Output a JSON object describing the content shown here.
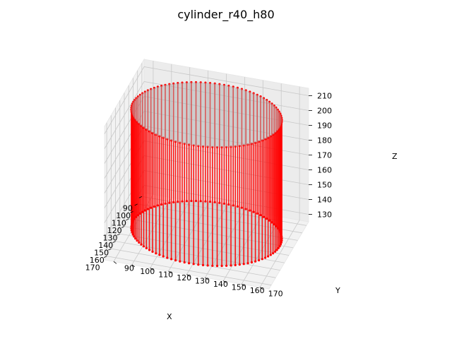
{
  "chart_data": {
    "type": "scatter",
    "projection": "3d",
    "title": "cylinder_r40_h80",
    "xlabel": "X",
    "ylabel": "Y",
    "zlabel": "Z",
    "x_ticks": [
      "90",
      "100",
      "110",
      "120",
      "130",
      "140",
      "150",
      "160",
      "170"
    ],
    "y_ticks": [
      "90",
      "100",
      "110",
      "120",
      "130",
      "140",
      "150",
      "160",
      "170"
    ],
    "z_ticks": [
      "130",
      "140",
      "150",
      "160",
      "170",
      "180",
      "190",
      "200",
      "210"
    ],
    "xlim": [
      85,
      175
    ],
    "ylim": [
      85,
      175
    ],
    "zlim": [
      125,
      215
    ],
    "grid": true,
    "series": [
      {
        "shape": "cylinder",
        "center": [
          130,
          130
        ],
        "radius": 40,
        "z_range": [
          130,
          210
        ],
        "segments": 100,
        "color": "#ff0000"
      }
    ]
  }
}
